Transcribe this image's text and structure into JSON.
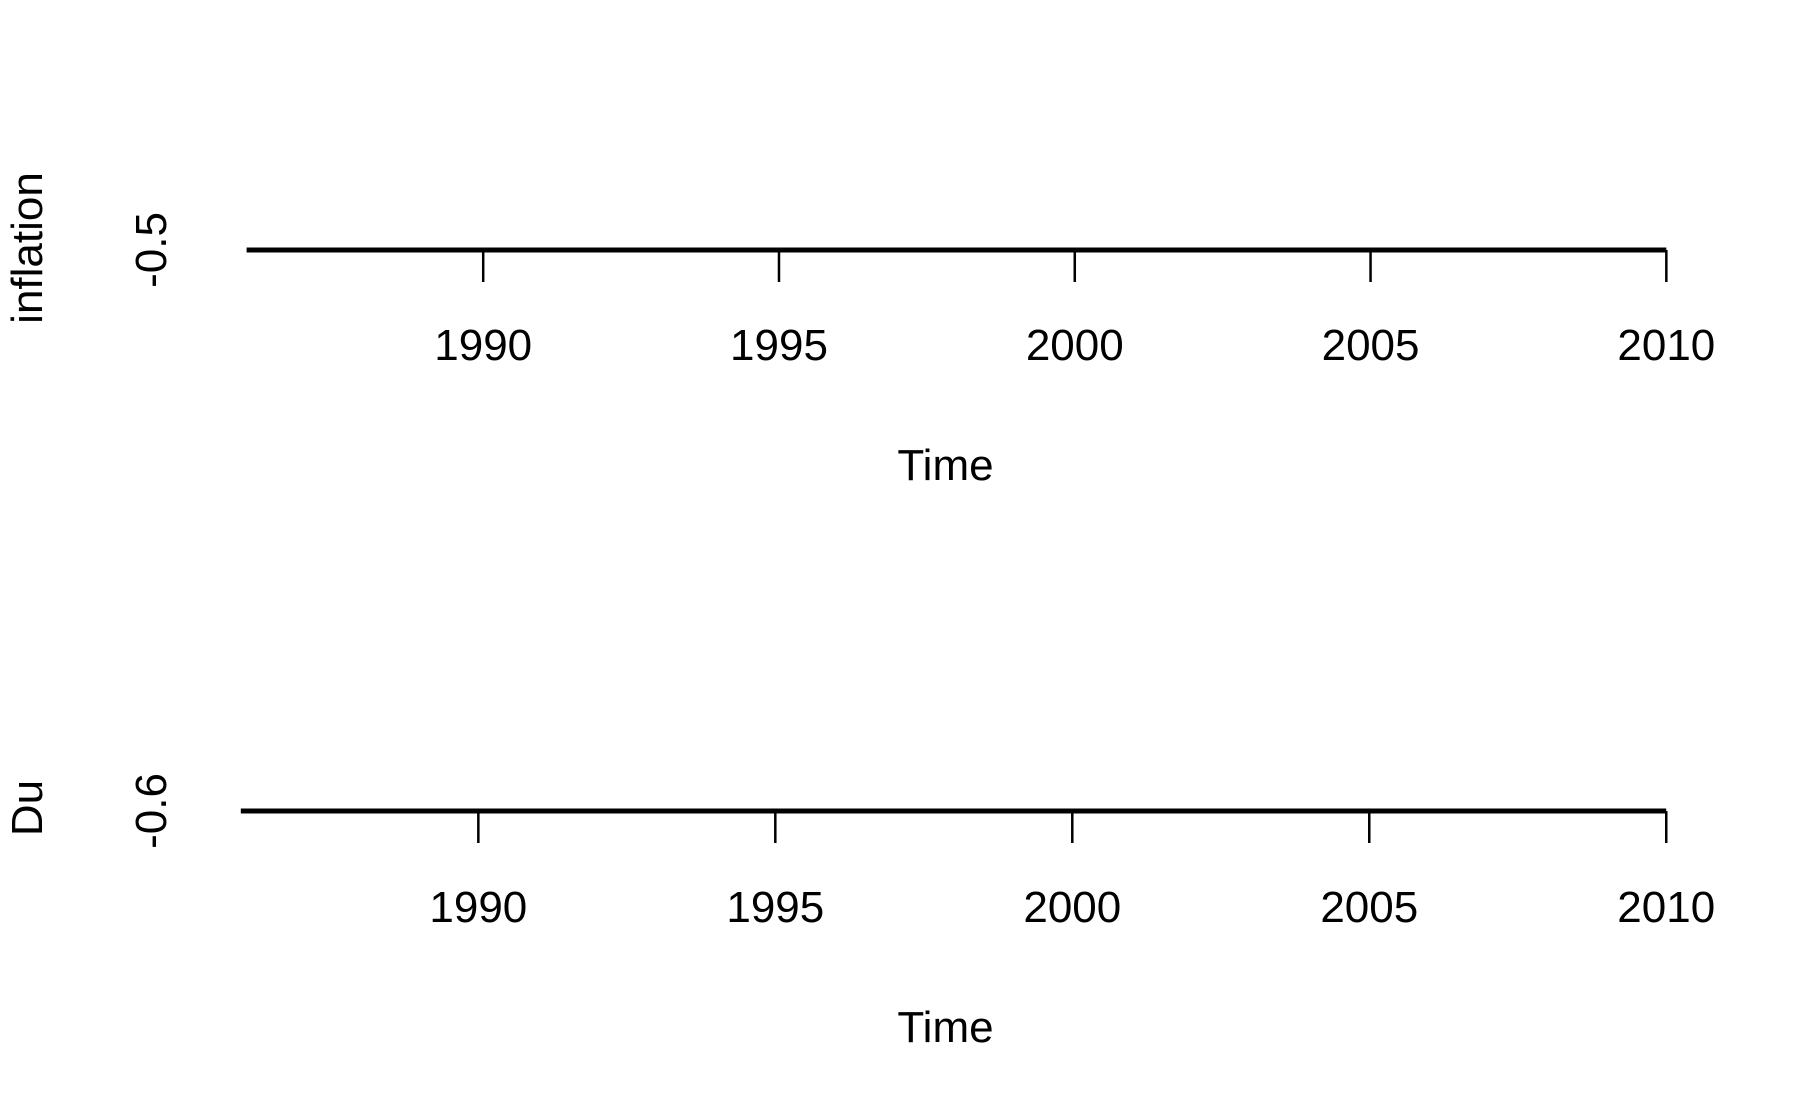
{
  "chart_data": [
    {
      "type": "line",
      "ylabel": "inflation",
      "xlabel": "Time",
      "x_ticks": [
        1990,
        1995,
        2000,
        2005,
        2010
      ],
      "xlim": [
        1985.5,
        2010.4
      ],
      "y_ticks": [
        -0.5
      ],
      "ylim": [
        -0.52,
        -0.48
      ],
      "x": [
        1986,
        1988,
        1990,
        1992,
        1994,
        1996,
        1998,
        2000,
        2002,
        2004,
        2006,
        2008,
        2010
      ],
      "series": [
        {
          "values": [
            -0.5,
            -0.5,
            -0.5,
            -0.5,
            -0.5,
            -0.5,
            -0.5,
            -0.5,
            -0.5,
            -0.5,
            -0.5,
            -0.5,
            -0.5
          ]
        }
      ],
      "line_color": "#000000"
    },
    {
      "type": "line",
      "ylabel": "Du",
      "xlabel": "Time",
      "x_ticks": [
        1990,
        1995,
        2000,
        2005,
        2010
      ],
      "xlim": [
        1985.6,
        2010.4
      ],
      "y_ticks": [
        -0.6
      ],
      "ylim": [
        -0.62,
        -0.58
      ],
      "x": [
        1986,
        1988,
        1990,
        1992,
        1994,
        1996,
        1998,
        2000,
        2002,
        2004,
        2006,
        2008,
        2010
      ],
      "series": [
        {
          "values": [
            -0.6,
            -0.6,
            -0.6,
            -0.6,
            -0.6,
            -0.6,
            -0.6,
            -0.6,
            -0.6,
            -0.6,
            -0.6,
            -0.6,
            -0.6
          ]
        }
      ],
      "line_color": "#000000"
    }
  ]
}
